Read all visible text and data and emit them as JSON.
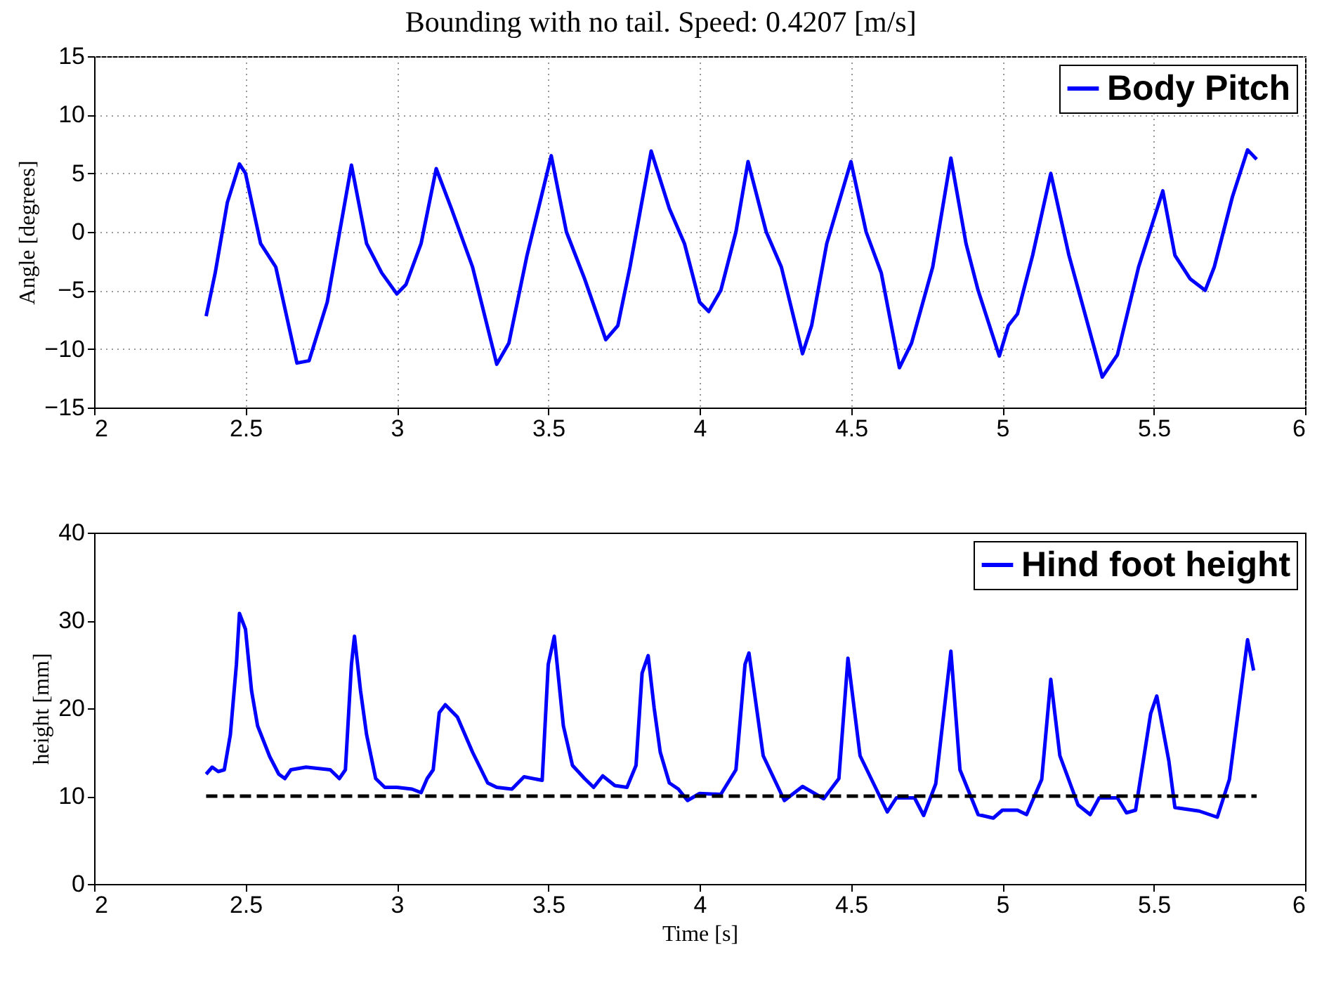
{
  "chart_data": [
    {
      "type": "line",
      "title": "Bounding with no tail. Speed: 0.4207 [m/s]",
      "ylabel": "Angle [degrees]",
      "xlim": [
        2,
        6
      ],
      "xticks": [
        2,
        2.5,
        3,
        3.5,
        4,
        4.5,
        5,
        5.5,
        6
      ],
      "ylim": [
        -15,
        15
      ],
      "yticks": [
        -15,
        -10,
        -5,
        0,
        5,
        10,
        15
      ],
      "grid": true,
      "legend": "top right",
      "series": [
        {
          "name": "Body Pitch",
          "color": "#0000ff",
          "x": [
            2.37,
            2.4,
            2.44,
            2.48,
            2.5,
            2.55,
            2.6,
            2.67,
            2.71,
            2.77,
            2.85,
            2.9,
            2.95,
            3.0,
            3.03,
            3.08,
            3.13,
            3.18,
            3.25,
            3.33,
            3.37,
            3.43,
            3.51,
            3.56,
            3.62,
            3.69,
            3.73,
            3.77,
            3.84,
            3.9,
            3.95,
            4.0,
            4.03,
            4.07,
            4.12,
            4.16,
            4.22,
            4.27,
            4.34,
            4.37,
            4.42,
            4.5,
            4.55,
            4.6,
            4.66,
            4.7,
            4.77,
            4.83,
            4.88,
            4.92,
            4.99,
            5.02,
            5.05,
            5.1,
            5.16,
            5.22,
            5.33,
            5.38,
            5.45,
            5.53,
            5.57,
            5.62,
            5.67,
            5.7,
            5.76,
            5.81,
            5.84
          ],
          "values": [
            -7.2,
            -3.5,
            2.5,
            5.8,
            5,
            -1,
            -3,
            -11.2,
            -11,
            -6,
            5.7,
            -1,
            -3.5,
            -5.3,
            -4.5,
            -1,
            5.4,
            2,
            -3,
            -11.3,
            -9.5,
            -2,
            6.5,
            0,
            -4,
            -9.2,
            -8,
            -3,
            6.9,
            2,
            -1,
            -6,
            -6.8,
            -5,
            0,
            6,
            0,
            -3,
            -10.4,
            -8,
            -1,
            6,
            0,
            -3.5,
            -11.6,
            -9.5,
            -3,
            6.3,
            -1,
            -5,
            -10.6,
            -8,
            -7,
            -2,
            5,
            -2,
            -12.4,
            -10.5,
            -3,
            3.5,
            -2,
            -4,
            -5,
            -3,
            3,
            7,
            6.2
          ]
        }
      ]
    },
    {
      "type": "line",
      "xlabel": "Time [s]",
      "ylabel": "height [mm]",
      "xlim": [
        2,
        6
      ],
      "xticks": [
        2,
        2.5,
        3,
        3.5,
        4,
        4.5,
        5,
        5.5,
        6
      ],
      "ylim": [
        0,
        40
      ],
      "yticks": [
        0,
        10,
        20,
        30,
        40
      ],
      "legend": "top right",
      "series": [
        {
          "name": "Hind foot height",
          "color": "#0000ff",
          "x": [
            2.37,
            2.39,
            2.41,
            2.43,
            2.45,
            2.47,
            2.48,
            2.5,
            2.52,
            2.54,
            2.58,
            2.61,
            2.63,
            2.65,
            2.7,
            2.78,
            2.81,
            2.83,
            2.85,
            2.86,
            2.88,
            2.9,
            2.93,
            2.96,
            3.0,
            3.05,
            3.08,
            3.1,
            3.12,
            3.14,
            3.16,
            3.2,
            3.25,
            3.3,
            3.33,
            3.38,
            3.42,
            3.48,
            3.5,
            3.52,
            3.55,
            3.58,
            3.62,
            3.65,
            3.68,
            3.72,
            3.76,
            3.79,
            3.81,
            3.83,
            3.85,
            3.87,
            3.9,
            3.93,
            3.96,
            4.0,
            4.07,
            4.12,
            4.15,
            4.163,
            4.21,
            4.28,
            4.34,
            4.41,
            4.46,
            4.49,
            4.53,
            4.62,
            4.65,
            4.71,
            4.74,
            4.78,
            4.83,
            4.86,
            4.92,
            4.97,
            5.0,
            5.05,
            5.08,
            5.13,
            5.16,
            5.19,
            5.25,
            5.29,
            5.32,
            5.38,
            5.41,
            5.44,
            5.49,
            5.51,
            5.55,
            5.57,
            5.65,
            5.71,
            5.75,
            5.81,
            5.83
          ],
          "values": [
            12.5,
            13.3,
            12.8,
            13,
            17,
            25,
            30.8,
            29,
            22,
            18,
            14.5,
            12.5,
            12,
            13,
            13.3,
            13,
            12,
            13,
            25,
            28.2,
            22,
            17,
            12,
            11,
            11,
            10.8,
            10.4,
            12,
            13,
            19.5,
            20.4,
            19,
            15,
            11.5,
            11,
            10.8,
            12.2,
            11.8,
            25,
            28.2,
            18,
            13.5,
            12,
            11,
            12.3,
            11.2,
            11,
            13.5,
            24,
            26,
            20,
            15,
            11.5,
            10.8,
            9.5,
            10.3,
            10.2,
            13,
            25,
            26.3,
            14.6,
            9.5,
            11.1,
            9.7,
            12,
            25.7,
            14.6,
            8.2,
            9.8,
            9.8,
            7.8,
            11.4,
            26.5,
            13,
            7.9,
            7.5,
            8.4,
            8.4,
            7.9,
            11.9,
            23.3,
            14.6,
            9,
            7.9,
            9.8,
            9.8,
            8.1,
            8.4,
            19.4,
            21.4,
            14,
            8.7,
            8.3,
            7.6,
            11.9,
            27.8,
            24.3
          ]
        },
        {
          "color": "#000000",
          "line_style": "dashed",
          "x": [
            2.37,
            5.84
          ],
          "values": [
            10,
            10
          ]
        }
      ]
    }
  ]
}
